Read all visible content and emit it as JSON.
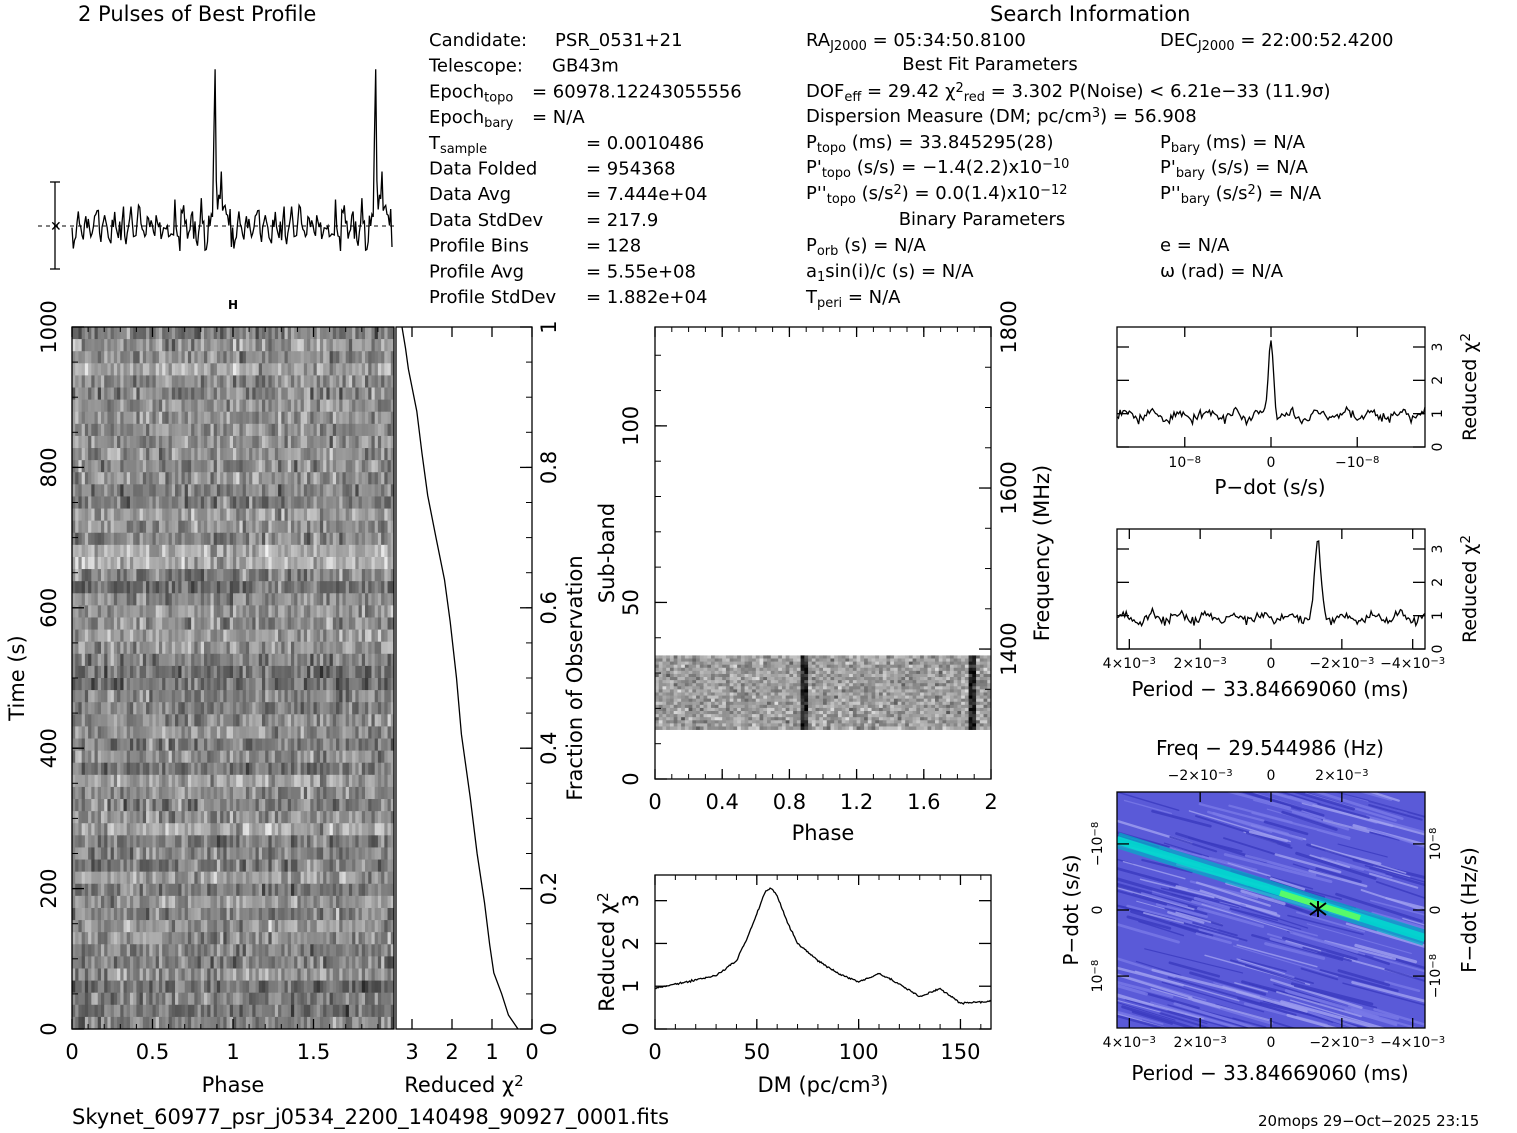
{
  "header": {
    "profile_title": "2 Pulses of Best Profile",
    "search_title": "Search Information",
    "best_fit_title": "Best Fit Parameters",
    "binary_title": "Binary Parameters"
  },
  "info_left": [
    {
      "label": "Candidate:",
      "value": "PSR_0531+21"
    },
    {
      "label": "Telescope:",
      "value": "GB43m"
    },
    {
      "label": "Epoch",
      "sub": "topo",
      "value": "= 60978.12243055556"
    },
    {
      "label": "Epoch",
      "sub": "bary",
      "value": "= N/A"
    },
    {
      "label": "T",
      "sub": "sample",
      "value": "=   0.0010486"
    },
    {
      "label": "Data Folded",
      "value": "=   954368"
    },
    {
      "label": "Data Avg",
      "value": "=   7.444e+04"
    },
    {
      "label": "Data StdDev",
      "value": "=   217.9"
    },
    {
      "label": "Profile Bins",
      "value": "=   128"
    },
    {
      "label": "Profile Avg",
      "value": "=   5.55e+08"
    },
    {
      "label": "Profile StdDev",
      "value": "=   1.882e+04"
    }
  ],
  "info_mid": {
    "ra": "RA",
    "ra_sub": "J2000",
    "ra_val": "= 05:34:50.8100",
    "dec": "DEC",
    "dec_sub": "J2000",
    "dec_val": "= 22:00:52.4200",
    "dof": "DOF",
    "dof_sub": "eff",
    "dof_val": "= 29.42",
    "chi": "χ",
    "chi_sup": "2",
    "chi_sub": "red",
    "chi_val": "= 3.302",
    "pnoise": "P(Noise) < 6.21e−33  (11.9σ)",
    "dm_line": "Dispersion Measure (DM; pc/cm",
    "dm_sup": "3",
    "dm_val": ") = 56.908",
    "p_topo_label": "P",
    "p_topo_sub": "topo",
    "p_topo_val": "(ms) =  33.845295(28)",
    "pd_topo_label": "P'",
    "pd_topo_sub": "topo",
    "pd_topo_val": "(s/s) = −1.4(2.2)x10",
    "pd_topo_exp": "−10",
    "pdd_topo_label": "P''",
    "pdd_topo_sub": "topo",
    "pdd_topo_val": "(s/s",
    "pdd_topo_sup": "2",
    "pdd_topo_val2": ") = 0.0(1.4)x10",
    "pdd_topo_exp": "−12",
    "p_bary_label": "P",
    "p_bary_sub": "bary",
    "p_bary_val": "(ms) = N/A",
    "pd_bary_label": "P'",
    "pd_bary_sub": "bary",
    "pd_bary_val": "(s/s) = N/A",
    "pdd_bary_label": "P''",
    "pdd_bary_sub": "bary",
    "pdd_bary_val": "(s/s",
    "pdd_bary_sup": "2",
    "pdd_bary_val2": ") = N/A",
    "porb_label": "P",
    "porb_sub": "orb",
    "porb_val": "(s) = N/A",
    "a1_label": "a",
    "a1_sub": "1",
    "a1_val": "sin(i)/c (s) = N/A",
    "tperi_label": "T",
    "tperi_sub": "peri",
    "tperi_val": "= N/A",
    "e_val": "e = N/A",
    "omega_val": "ω (rad) = N/A"
  },
  "footer": {
    "filename": "Skynet_60977_psr_j0534_2200_140498_90927_0001.fits",
    "stamp": "20mops 29−Oct−2025 23:15"
  },
  "chart_data": [
    {
      "id": "profile",
      "type": "line",
      "title": "2 Pulses of Best Profile",
      "x": "phase 0..2 (128 bins x 2)",
      "peaks_at_phase": [
        0.89,
        1.89
      ]
    },
    {
      "id": "time_phase",
      "type": "heatmap",
      "xlabel": "Phase",
      "ylabel": "Time (s)",
      "xlim": [
        0,
        2
      ],
      "ylim": [
        0,
        1000
      ],
      "xticks": [
        "0",
        "0.5",
        "1",
        "1.5"
      ],
      "yticks": [
        "0",
        "200",
        "400",
        "600",
        "800",
        "1000"
      ]
    },
    {
      "id": "time_chi",
      "type": "line",
      "xlabel": "Reduced χ",
      "xlabel_sup": "2",
      "ylabel": "Fraction of Observation",
      "xlim": [
        3.4,
        0
      ],
      "ylim": [
        0,
        1
      ],
      "xticks": [
        "3",
        "2",
        "1",
        "0"
      ],
      "yticks": [
        "0",
        "0.2",
        "0.4",
        "0.6",
        "0.8",
        "1"
      ],
      "x": [
        0.35,
        0.6,
        0.75,
        0.95,
        1.05,
        1.2,
        1.35,
        1.55,
        1.75,
        1.9,
        2.05,
        2.2,
        2.4,
        2.6,
        2.75,
        2.9,
        3.1,
        3.15,
        3.25
      ],
      "y": [
        0.0,
        0.02,
        0.05,
        0.08,
        0.12,
        0.18,
        0.25,
        0.33,
        0.42,
        0.5,
        0.58,
        0.64,
        0.7,
        0.76,
        0.82,
        0.88,
        0.94,
        0.97,
        1.0
      ]
    },
    {
      "id": "subband_phase",
      "type": "heatmap",
      "xlabel": "Phase",
      "ylabel": "Sub-band",
      "y2label": "Frequency (MHz)",
      "xlim": [
        0,
        2
      ],
      "ylim": [
        0,
        128
      ],
      "xticks": [
        "0",
        "0.4",
        "0.8",
        "1.2",
        "1.6",
        "2"
      ],
      "yticks": [
        "0",
        "50",
        "100"
      ],
      "y2ticks": [
        "1400",
        "1600",
        "1800"
      ],
      "data_band": [
        14,
        35
      ]
    },
    {
      "id": "dm_chi",
      "type": "line",
      "xlabel": "DM (pc/cm",
      "xlabel_sup": "3",
      "xlabel_end": ")",
      "ylabel": "Reduced χ",
      "ylabel_sup": "2",
      "xlim": [
        0,
        165
      ],
      "ylim": [
        0,
        3.6
      ],
      "xticks": [
        "0",
        "50",
        "100",
        "150"
      ],
      "yticks": [
        "0",
        "1",
        "2",
        "3"
      ],
      "x": [
        0,
        10,
        20,
        30,
        40,
        45,
        50,
        54,
        56.9,
        60,
        65,
        70,
        80,
        90,
        100,
        110,
        120,
        130,
        140,
        150,
        165
      ],
      "y": [
        0.95,
        1.05,
        1.15,
        1.25,
        1.6,
        2.1,
        2.7,
        3.2,
        3.3,
        3.1,
        2.5,
        2.0,
        1.6,
        1.3,
        1.1,
        1.3,
        1.05,
        0.75,
        0.95,
        0.6,
        0.65
      ]
    },
    {
      "id": "pdot_chi",
      "type": "line",
      "xlabel": "P−dot (s/s)",
      "ylabel": "Reduced χ",
      "ylabel_sup": "2",
      "xticks": [
        "10",
        "0",
        "−10"
      ],
      "xtick_exp": "−8",
      "yticks": [
        "0",
        "1",
        "2",
        "3"
      ],
      "ylim": [
        0,
        3.6
      ],
      "peak_at": 0
    },
    {
      "id": "period_chi",
      "type": "line",
      "xlabel": "Period − 33.84669060 (ms)",
      "ylabel": "Reduced χ",
      "ylabel_sup": "2",
      "xticks": [
        "4×10",
        "2×10",
        "0",
        "−2×10",
        "−4×10"
      ],
      "xtick_exp": "−3",
      "yticks": [
        "0",
        "1",
        "2",
        "3"
      ],
      "ylim": [
        0,
        3.6
      ],
      "peak_at": -0.0015
    },
    {
      "id": "pp_dot_plane",
      "type": "heatmap",
      "title": "Freq − 29.544986 (Hz)",
      "xlabel": "Period − 33.84669060 (ms)",
      "ylabel": "P−dot (s/s)",
      "y2label": "F−dot (Hz/s)",
      "xticks": [
        "4×10",
        "2×10",
        "0",
        "−2×10",
        "−4×10"
      ],
      "xtick_exp": "−3",
      "topticks": [
        "−2×10",
        "0",
        "2×10"
      ],
      "yticks": [
        "−10",
        "0",
        "10"
      ],
      "ytick_exp": "−8",
      "y2ticks": [
        "10",
        "0",
        "−10"
      ],
      "y2tick_exp": "−8"
    }
  ]
}
